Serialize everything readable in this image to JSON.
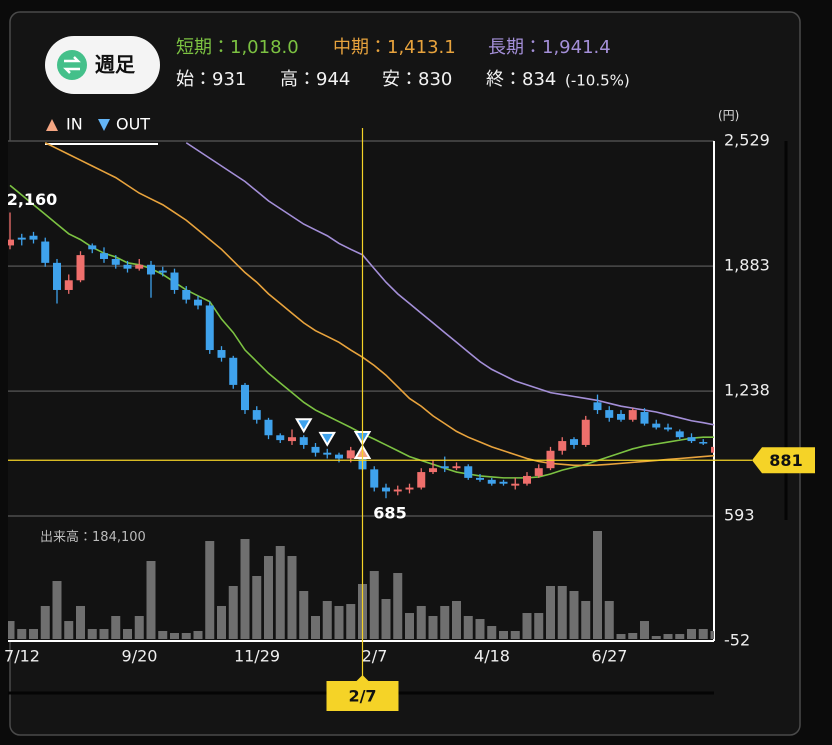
{
  "button": "週足",
  "chart_data": {
    "type": "candlestick",
    "categories": [
      "7/12",
      null,
      null,
      null,
      null,
      null,
      null,
      null,
      null,
      null,
      "9/20",
      null,
      null,
      null,
      null,
      null,
      null,
      null,
      null,
      null,
      "11/29",
      null,
      null,
      null,
      null,
      null,
      null,
      null,
      null,
      null,
      "2/7",
      null,
      null,
      null,
      null,
      null,
      null,
      null,
      null,
      null,
      "4/18",
      null,
      null,
      null,
      null,
      null,
      null,
      null,
      null,
      null,
      "6/27",
      null,
      null,
      null,
      null,
      null,
      null,
      null,
      null,
      null,
      null
    ],
    "open": [
      1990,
      2030,
      2040,
      2010,
      1900,
      1760,
      1810,
      1990,
      1950,
      1920,
      1890,
      1870,
      1890,
      1860,
      1850,
      1760,
      1710,
      1680,
      1450,
      1410,
      1270,
      1140,
      1090,
      1010,
      980,
      1000,
      950,
      920,
      910,
      890,
      931,
      834,
      740,
      720,
      730,
      740,
      820,
      850,
      840,
      850,
      790,
      780,
      770,
      750,
      760,
      800,
      840,
      930,
      990,
      960,
      1180,
      1140,
      1120,
      1090,
      1130,
      1070,
      1050,
      1030,
      1000,
      975,
      920
    ],
    "high": [
      2160,
      2050,
      2060,
      2030,
      1920,
      1840,
      1960,
      2000,
      1980,
      1940,
      1910,
      1920,
      1910,
      1880,
      1870,
      1780,
      1730,
      1700,
      1470,
      1420,
      1280,
      1160,
      1100,
      1020,
      1040,
      1010,
      970,
      940,
      920,
      950,
      944,
      850,
      760,
      750,
      760,
      840,
      880,
      900,
      870,
      860,
      810,
      790,
      780,
      790,
      820,
      860,
      950,
      1000,
      1000,
      1110,
      1220,
      1160,
      1140,
      1150,
      1150,
      1090,
      1070,
      1040,
      1020,
      990,
      960
    ],
    "low": [
      1970,
      1990,
      2000,
      1880,
      1690,
      1740,
      1800,
      1950,
      1900,
      1870,
      1850,
      1860,
      1720,
      1830,
      1740,
      1690,
      1660,
      1430,
      1390,
      1250,
      1120,
      1070,
      990,
      970,
      960,
      940,
      900,
      890,
      870,
      870,
      830,
      720,
      685,
      700,
      710,
      730,
      810,
      820,
      830,
      780,
      770,
      750,
      750,
      730,
      750,
      790,
      830,
      910,
      940,
      950,
      1120,
      1080,
      1080,
      1080,
      1060,
      1040,
      1030,
      990,
      970,
      960,
      910
    ],
    "close": [
      2020,
      2020,
      2020,
      1900,
      1760,
      1810,
      1940,
      1970,
      1920,
      1890,
      1870,
      1890,
      1840,
      1850,
      1760,
      1710,
      1680,
      1450,
      1410,
      1270,
      1140,
      1090,
      1010,
      985,
      1000,
      960,
      920,
      910,
      890,
      932,
      834,
      740,
      720,
      730,
      740,
      820,
      840,
      840,
      850,
      790,
      780,
      760,
      760,
      760,
      800,
      840,
      930,
      980,
      960,
      1090,
      1140,
      1100,
      1090,
      1140,
      1070,
      1050,
      1040,
      1000,
      980,
      970,
      950
    ],
    "up_color": "#ef6f6c",
    "down_color": "#3fa2ec",
    "series": [
      {
        "name": "短期",
        "color": "#7cc242",
        "values": [
          2300,
          2250,
          2200,
          2150,
          2100,
          2050,
          2020,
          1980,
          1950,
          1930,
          1900,
          1890,
          1870,
          1840,
          1800,
          1760,
          1730,
          1700,
          1610,
          1540,
          1450,
          1390,
          1330,
          1280,
          1230,
          1180,
          1140,
          1110,
          1080,
          1050,
          1018,
          990,
          960,
          930,
          900,
          880,
          860,
          840,
          820,
          810,
          800,
          795,
          790,
          790,
          790,
          795,
          810,
          830,
          845,
          860,
          880,
          900,
          920,
          940,
          955,
          965,
          975,
          985,
          995,
          1000,
          1000
        ],
        "value_labels": [
          null,
          null,
          null,
          null,
          null,
          null,
          null,
          null,
          null,
          null,
          null,
          null,
          null,
          null,
          null,
          null,
          null,
          null,
          null,
          null,
          null,
          null,
          null,
          null,
          null,
          null,
          null,
          null,
          null,
          null,
          "1,018.0",
          null,
          null,
          null,
          null,
          null,
          null,
          null,
          null,
          null,
          null,
          null,
          null,
          null,
          null,
          null,
          null,
          null,
          null,
          null,
          null,
          null,
          null,
          null,
          null,
          null,
          null,
          null,
          null,
          null,
          null
        ]
      },
      {
        "name": "中期",
        "color": "#e8a33d",
        "values": [
          null,
          null,
          null,
          2520,
          2490,
          2460,
          2430,
          2400,
          2370,
          2340,
          2300,
          2260,
          2230,
          2200,
          2160,
          2120,
          2070,
          2020,
          1970,
          1910,
          1850,
          1800,
          1740,
          1690,
          1640,
          1590,
          1550,
          1520,
          1490,
          1450,
          1413.1,
          1370,
          1320,
          1260,
          1200,
          1160,
          1110,
          1070,
          1030,
          1000,
          975,
          950,
          930,
          910,
          890,
          875,
          865,
          860,
          855,
          855,
          856,
          860,
          865,
          870,
          875,
          880,
          885,
          890,
          895,
          900,
          905
        ],
        "value_labels": [
          null,
          null,
          null,
          null,
          null,
          null,
          null,
          null,
          null,
          null,
          null,
          null,
          null,
          null,
          null,
          null,
          null,
          null,
          null,
          null,
          null,
          null,
          null,
          null,
          null,
          null,
          null,
          null,
          null,
          null,
          "1,413.1",
          null,
          null,
          null,
          null,
          null,
          null,
          null,
          null,
          null,
          null,
          null,
          null,
          null,
          null,
          null,
          null,
          null,
          null,
          null,
          null,
          null,
          null,
          null,
          null,
          null,
          null,
          null,
          null,
          null,
          null
        ]
      },
      {
        "name": "長期",
        "color": "#a48fd8",
        "values": [
          null,
          null,
          null,
          null,
          null,
          null,
          null,
          null,
          null,
          null,
          null,
          null,
          null,
          null,
          null,
          2520,
          2480,
          2440,
          2400,
          2360,
          2320,
          2270,
          2220,
          2180,
          2140,
          2100,
          2070,
          2040,
          2000,
          1970,
          1941.4,
          1870,
          1800,
          1740,
          1690,
          1640,
          1590,
          1540,
          1490,
          1440,
          1390,
          1350,
          1320,
          1290,
          1270,
          1250,
          1230,
          1220,
          1210,
          1200,
          1190,
          1175,
          1160,
          1150,
          1140,
          1130,
          1115,
          1100,
          1085,
          1075,
          1063
        ],
        "value_labels": [
          null,
          null,
          null,
          null,
          null,
          null,
          null,
          null,
          null,
          null,
          null,
          null,
          null,
          null,
          null,
          null,
          null,
          null,
          null,
          null,
          null,
          null,
          null,
          null,
          null,
          null,
          null,
          null,
          null,
          null,
          "1,941.4",
          null,
          null,
          null,
          null,
          null,
          null,
          null,
          null,
          null,
          null,
          null,
          null,
          null,
          null,
          null,
          null,
          null,
          null,
          null,
          null,
          null,
          null,
          null,
          null,
          null,
          null,
          null,
          null,
          null,
          null
        ]
      }
    ],
    "volume": {
      "name": "出来高",
      "color": "#6f6f6f",
      "values": [
        60200,
        33500,
        33500,
        110500,
        194100,
        60200,
        110500,
        33500,
        33500,
        77000,
        33500,
        77000,
        261100,
        26800,
        20100,
        20100,
        26800,
        328000,
        110500,
        177400,
        334700,
        210900,
        277800,
        311300,
        277800,
        160700,
        77000,
        127200,
        110500,
        117100,
        184100,
        227600,
        133900,
        220900,
        87000,
        110500,
        77000,
        110500,
        127200,
        77000,
        66900,
        43500,
        26800,
        26800,
        87000,
        87000,
        177400,
        177400,
        160700,
        127200,
        361500,
        127200,
        16700,
        20100,
        60200,
        10000,
        16700,
        16700,
        33500,
        33500,
        26800
      ],
      "value_labels": [
        null,
        null,
        null,
        null,
        null,
        null,
        null,
        null,
        null,
        null,
        null,
        null,
        null,
        null,
        null,
        null,
        null,
        null,
        null,
        null,
        null,
        null,
        null,
        null,
        null,
        null,
        null,
        null,
        null,
        null,
        "184,100",
        null,
        null,
        null,
        null,
        null,
        null,
        null,
        null,
        null,
        null,
        null,
        null,
        null,
        null,
        null,
        null,
        null,
        null,
        null,
        null,
        null,
        null,
        null,
        null,
        null,
        null,
        null,
        null,
        null,
        null
      ]
    },
    "ylim": [
      -52,
      2529
    ],
    "yticks": [
      {
        "value": 2529,
        "label": "2,529"
      },
      {
        "value": 1883,
        "label": "1,883"
      },
      {
        "value": 1238,
        "label": "1,238"
      },
      593,
      -52
    ],
    "y_unit": "(円)",
    "grid": true,
    "ohlc_labels": [
      "始",
      "高",
      "安",
      "終"
    ],
    "separator": "：",
    "change_label": "(-10.5%)",
    "crosshair": {
      "index": 30,
      "price": 881,
      "color": "#f5d327"
    },
    "annotations": [
      {
        "label": "2,160",
        "index": 0,
        "at": "high"
      },
      {
        "label": "685",
        "index": 32,
        "at": "low"
      }
    ],
    "signal_labels": {
      "in": "IN",
      "out": "OUT"
    },
    "in_signals": [
      30
    ],
    "out_signals": [
      25,
      27,
      30
    ]
  }
}
